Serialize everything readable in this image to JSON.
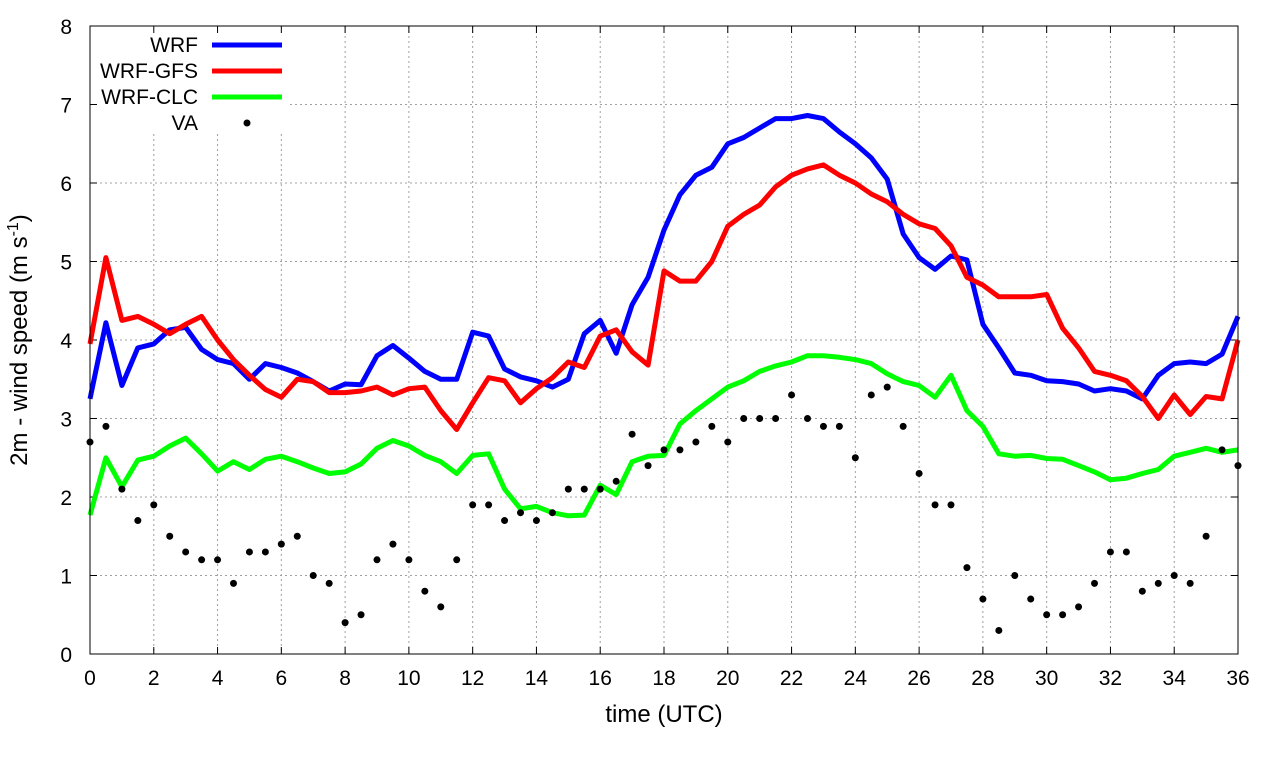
{
  "chart_data": {
    "type": "line",
    "title": "",
    "xlabel": "time (UTC)",
    "ylabel_main": "2m - wind speed  (m s",
    "ylabel_sup": "-1",
    "ylabel_close": ")",
    "xlim": [
      0,
      36
    ],
    "ylim": [
      0,
      8
    ],
    "xticks": [
      0,
      2,
      4,
      6,
      8,
      10,
      12,
      14,
      16,
      18,
      20,
      22,
      24,
      26,
      28,
      30,
      32,
      34,
      36
    ],
    "yticks": [
      0,
      1,
      2,
      3,
      4,
      5,
      6,
      7,
      8
    ],
    "grid": true,
    "legend_position": "top-left",
    "x": [
      0,
      0.5,
      1,
      1.5,
      2,
      2.5,
      3,
      3.5,
      4,
      4.5,
      5,
      5.5,
      6,
      6.5,
      7,
      7.5,
      8,
      8.5,
      9,
      9.5,
      10,
      10.5,
      11,
      11.5,
      12,
      12.5,
      13,
      13.5,
      14,
      14.5,
      15,
      15.5,
      16,
      16.5,
      17,
      17.5,
      18,
      18.5,
      19,
      19.5,
      20,
      20.5,
      21,
      21.5,
      22,
      22.5,
      23,
      23.5,
      24,
      24.5,
      25,
      25.5,
      26,
      26.5,
      27,
      27.5,
      28,
      28.5,
      29,
      29.5,
      30,
      30.5,
      31,
      31.5,
      32,
      32.5,
      33,
      33.5,
      34,
      34.5,
      35,
      35.5,
      36
    ],
    "series": [
      {
        "name": "WRF",
        "color": "#0000ff",
        "style": "line",
        "values": [
          3.25,
          4.22,
          3.42,
          3.9,
          3.95,
          4.13,
          4.16,
          3.88,
          3.75,
          3.7,
          3.5,
          3.7,
          3.65,
          3.58,
          3.47,
          3.35,
          3.44,
          3.43,
          3.8,
          3.93,
          3.77,
          3.6,
          3.5,
          3.5,
          4.1,
          4.05,
          3.63,
          3.53,
          3.48,
          3.4,
          3.5,
          4.08,
          4.25,
          3.83,
          4.45,
          4.8,
          5.4,
          5.85,
          6.1,
          6.2,
          6.5,
          6.58,
          6.7,
          6.82,
          6.82,
          6.86,
          6.82,
          6.65,
          6.5,
          6.32,
          6.05,
          5.35,
          5.05,
          4.9,
          5.07,
          5.02,
          4.2,
          3.9,
          3.58,
          3.55,
          3.48,
          3.47,
          3.44,
          3.35,
          3.38,
          3.35,
          3.25,
          3.55,
          3.7,
          3.72,
          3.7,
          3.82,
          4.3
        ]
      },
      {
        "name": "WRF-GFS",
        "color": "#ff0000",
        "style": "line",
        "values": [
          3.95,
          5.05,
          4.25,
          4.3,
          4.2,
          4.08,
          4.2,
          4.3,
          4.0,
          3.75,
          3.55,
          3.37,
          3.27,
          3.5,
          3.47,
          3.33,
          3.33,
          3.35,
          3.4,
          3.3,
          3.38,
          3.4,
          3.1,
          2.86,
          3.2,
          3.52,
          3.48,
          3.2,
          3.38,
          3.52,
          3.72,
          3.65,
          4.05,
          4.13,
          3.85,
          3.68,
          4.88,
          4.75,
          4.75,
          5.0,
          5.45,
          5.6,
          5.72,
          5.95,
          6.1,
          6.18,
          6.23,
          6.1,
          6.0,
          5.86,
          5.76,
          5.6,
          5.48,
          5.42,
          5.2,
          4.8,
          4.7,
          4.55,
          4.55,
          4.55,
          4.58,
          4.15,
          3.9,
          3.6,
          3.55,
          3.48,
          3.28,
          3.0,
          3.3,
          3.05,
          3.28,
          3.25,
          4.0
        ]
      },
      {
        "name": "WRF-CLC",
        "color": "#00ff00",
        "style": "line",
        "values": [
          1.77,
          2.5,
          2.13,
          2.47,
          2.52,
          2.65,
          2.75,
          2.55,
          2.33,
          2.45,
          2.35,
          2.48,
          2.52,
          2.45,
          2.37,
          2.3,
          2.32,
          2.42,
          2.62,
          2.72,
          2.65,
          2.53,
          2.45,
          2.3,
          2.53,
          2.55,
          2.1,
          1.85,
          1.88,
          1.8,
          1.76,
          1.77,
          2.15,
          2.03,
          2.45,
          2.52,
          2.53,
          2.93,
          3.1,
          3.25,
          3.4,
          3.48,
          3.6,
          3.67,
          3.72,
          3.8,
          3.8,
          3.78,
          3.75,
          3.7,
          3.57,
          3.47,
          3.42,
          3.27,
          3.55,
          3.1,
          2.9,
          2.55,
          2.52,
          2.53,
          2.49,
          2.48,
          2.4,
          2.32,
          2.22,
          2.24,
          2.3,
          2.35,
          2.52,
          2.57,
          2.62,
          2.57,
          2.6
        ]
      },
      {
        "name": "VA",
        "color": "#000000",
        "style": "points",
        "values": [
          2.7,
          2.9,
          2.1,
          1.7,
          1.9,
          1.5,
          1.3,
          1.2,
          1.2,
          0.9,
          1.3,
          1.3,
          1.4,
          1.5,
          1.0,
          0.9,
          0.4,
          0.5,
          1.2,
          1.4,
          1.2,
          0.8,
          0.6,
          1.2,
          1.9,
          1.9,
          1.7,
          1.8,
          1.7,
          1.8,
          2.1,
          2.1,
          2.1,
          2.2,
          2.8,
          2.4,
          2.6,
          2.6,
          2.7,
          2.9,
          2.7,
          3.0,
          3.0,
          3.0,
          3.3,
          3.0,
          2.9,
          2.9,
          2.5,
          3.3,
          3.4,
          2.9,
          2.3,
          1.9,
          1.9,
          1.1,
          0.7,
          0.3,
          1.0,
          0.7,
          0.5,
          0.5,
          0.6,
          0.9,
          1.3,
          1.3,
          0.8,
          0.9,
          1.0,
          0.9,
          1.5,
          2.6,
          2.4
        ]
      }
    ]
  }
}
